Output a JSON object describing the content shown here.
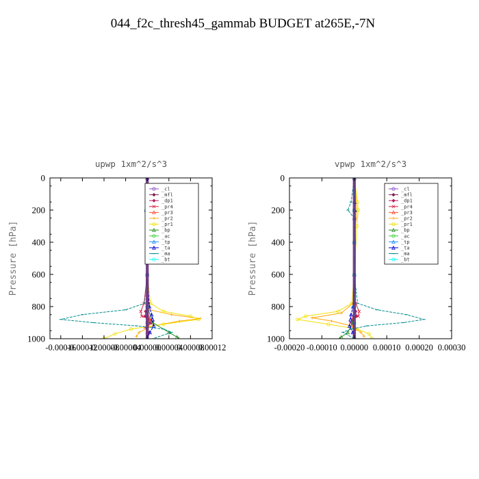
{
  "figure_title": "044_f2c_thresh45_gammab  BUDGET at265E,-7N",
  "chart_data": [
    {
      "type": "line",
      "title": "upwp   1xm^2/s^3",
      "ylabel": "Pressure [hPa]",
      "xlabel": "",
      "ylim": [
        1000,
        0
      ],
      "xlim": [
        -0.00018,
        0.00012
      ],
      "y_ticks": [
        "0",
        "200",
        "400",
        "600",
        "800",
        "1000"
      ],
      "x_tick_labels": [
        "-0.00016",
        "-0.00012",
        "-0.00008",
        "-0.00004",
        "0.00000",
        "0.00004",
        "0.00008",
        "0.00012"
      ],
      "x_tick_values": [
        -0.00016,
        -0.00012,
        -8e-05,
        -4e-05,
        0.0,
        4e-05,
        8e-05,
        0.00012
      ],
      "legend_position": "top-right",
      "series": [
        {
          "name": "_cl",
          "color": "#8a4fc9",
          "x": [
            0,
            0,
            0,
            0,
            0,
            0
          ],
          "y": [
            0,
            200,
            400,
            600,
            800,
            1000
          ]
        },
        {
          "name": "_mfl",
          "color": "#7b1d4f",
          "x": [
            0,
            0,
            0,
            0,
            0,
            0
          ],
          "y": [
            0,
            200,
            400,
            600,
            800,
            1000
          ]
        },
        {
          "name": "_dp1",
          "color": "#b02060",
          "x": [
            0,
            0,
            0,
            0,
            2e-06,
            -3e-06,
            -4e-06,
            4e-06,
            5e-06,
            -2e-06,
            1e-06,
            0
          ],
          "y": [
            0,
            200,
            400,
            600,
            780,
            830,
            860,
            880,
            900,
            930,
            960,
            1000
          ]
        },
        {
          "name": "_pr4",
          "color": "#d62040",
          "x": [
            0,
            0,
            0,
            0,
            -6e-06,
            -1.2e-05,
            -1e-05,
            6e-06,
            1e-05,
            -4e-06,
            2e-06,
            0
          ],
          "y": [
            0,
            200,
            400,
            600,
            780,
            830,
            860,
            880,
            900,
            930,
            960,
            1000
          ]
        },
        {
          "name": "_pr3",
          "color": "#ff5030",
          "x": [
            0,
            0,
            0,
            0,
            0,
            2e-06,
            4e-06,
            2e-06,
            0,
            0
          ],
          "y": [
            0,
            200,
            400,
            600,
            800,
            860,
            880,
            920,
            960,
            1000
          ]
        },
        {
          "name": "_pr2",
          "color": "#ffa500",
          "x": [
            0,
            1e-06,
            0,
            0,
            0,
            4e-06,
            4.5e-05,
            9.8e-05,
            6e-05,
            1e-05,
            -1.5e-05,
            -2e-05
          ],
          "y": [
            0,
            200,
            400,
            600,
            780,
            820,
            850,
            875,
            890,
            920,
            960,
            985
          ]
        },
        {
          "name": "_pr1",
          "color": "#f0e000",
          "x": [
            0,
            3e-06,
            4e-06,
            2e-06,
            0,
            6e-06,
            3e-05,
            8e-05,
            9.5e-05,
            3e-05,
            -3e-05,
            -6e-05,
            -8e-05
          ],
          "y": [
            0,
            150,
            250,
            350,
            600,
            780,
            830,
            860,
            880,
            910,
            940,
            970,
            1000
          ]
        },
        {
          "name": "_bp",
          "color": "#228b22",
          "x": [
            0,
            0,
            0,
            0,
            0,
            1e-05,
            4e-05,
            5.5e-05,
            5.8e-05
          ],
          "y": [
            0,
            200,
            400,
            600,
            800,
            900,
            960,
            990,
            1000
          ]
        },
        {
          "name": "_ac",
          "color": "#32cd32",
          "x": [
            0,
            0,
            0,
            0,
            0,
            0,
            0
          ],
          "y": [
            0,
            200,
            400,
            600,
            800,
            900,
            1000
          ]
        },
        {
          "name": "_tp",
          "color": "#1e90ff",
          "x": [
            0,
            0,
            0,
            0,
            0,
            0,
            0
          ],
          "y": [
            0,
            200,
            400,
            600,
            800,
            900,
            1000
          ]
        },
        {
          "name": "_ta",
          "color": "#0000cd",
          "x": [
            0,
            -1e-06,
            -2e-06,
            0,
            0,
            4e-06,
            8e-06,
            1e-05,
            1.2e-05,
            5e-06,
            0
          ],
          "y": [
            0,
            150,
            200,
            250,
            600,
            800,
            850,
            880,
            920,
            960,
            1000
          ]
        },
        {
          "name": "_ma",
          "color": "#008b8b",
          "x": [
            0,
            -2e-06,
            -3e-06,
            0,
            0,
            -5e-06,
            -4e-05,
            -0.00012,
            -0.00016,
            -0.0001,
            -2e-05,
            3e-05,
            4.5e-05,
            1e-05
          ],
          "y": [
            0,
            150,
            200,
            250,
            600,
            780,
            820,
            850,
            880,
            900,
            920,
            940,
            960,
            1000
          ]
        },
        {
          "name": "_bt",
          "color": "#00ffff",
          "x": [
            0,
            0,
            0,
            0,
            0,
            0
          ],
          "y": [
            0,
            200,
            400,
            600,
            800,
            1000
          ]
        }
      ]
    },
    {
      "type": "line",
      "title": "vpwp   1xm^2/s^3",
      "ylabel": "Pressure [hPa]",
      "xlabel": "",
      "ylim": [
        1000,
        0
      ],
      "xlim": [
        -0.0002,
        0.0003
      ],
      "y_ticks": [
        "0",
        "200",
        "400",
        "600",
        "800",
        "1000"
      ],
      "x_tick_labels": [
        "-0.00020",
        "-0.00010",
        "0.00000",
        "0.00010",
        "0.00020",
        "0.00030"
      ],
      "x_tick_values": [
        -0.0002,
        -0.0001,
        0.0,
        0.0001,
        0.0002,
        0.0003
      ],
      "legend_position": "top-right",
      "series": [
        {
          "name": "_cl",
          "color": "#8a4fc9",
          "x": [
            0,
            0,
            0,
            0,
            0,
            0
          ],
          "y": [
            0,
            200,
            400,
            600,
            800,
            1000
          ]
        },
        {
          "name": "_mfl",
          "color": "#7b1d4f",
          "x": [
            0,
            0,
            0,
            0,
            0,
            0
          ],
          "y": [
            0,
            200,
            400,
            600,
            800,
            1000
          ]
        },
        {
          "name": "_dp1",
          "color": "#b02060",
          "x": [
            0,
            0,
            0,
            0,
            -2e-06,
            4e-06,
            6e-06,
            -4e-06,
            -5e-06,
            2e-06,
            0
          ],
          "y": [
            0,
            200,
            400,
            600,
            780,
            830,
            860,
            880,
            900,
            940,
            1000
          ]
        },
        {
          "name": "_pr4",
          "color": "#d62040",
          "x": [
            0,
            0,
            0,
            0,
            4e-06,
            1.5e-05,
            1.2e-05,
            -6e-06,
            -1e-05,
            3e-06,
            0
          ],
          "y": [
            0,
            200,
            400,
            600,
            780,
            830,
            860,
            880,
            900,
            940,
            1000
          ]
        },
        {
          "name": "_pr3",
          "color": "#ff5030",
          "x": [
            0,
            0,
            0,
            0,
            0,
            -2e-06,
            -4e-06,
            -2e-06,
            0,
            0
          ],
          "y": [
            0,
            200,
            400,
            600,
            800,
            860,
            880,
            920,
            960,
            1000
          ]
        },
        {
          "name": "_pr2",
          "color": "#ffa500",
          "x": [
            0,
            8e-06,
            6e-06,
            0,
            0,
            -4e-06,
            -4e-05,
            -0.00013,
            -7e-05,
            -1e-05,
            2e-05,
            3e-05
          ],
          "y": [
            0,
            200,
            250,
            350,
            600,
            780,
            840,
            870,
            890,
            920,
            960,
            985
          ]
        },
        {
          "name": "_pr1",
          "color": "#f0e000",
          "x": [
            0,
            1e-05,
            1.2e-05,
            8e-06,
            0,
            -8e-06,
            -5e-05,
            -0.00015,
            -0.000175,
            -8e-05,
            1e-05,
            4.5e-05,
            5.5e-05
          ],
          "y": [
            0,
            150,
            200,
            300,
            600,
            780,
            830,
            860,
            880,
            910,
            940,
            970,
            1000
          ]
        },
        {
          "name": "_bp",
          "color": "#228b22",
          "x": [
            0,
            0,
            0,
            0,
            0,
            -5e-06,
            -2e-05,
            -4e-05,
            -4.5e-05
          ],
          "y": [
            0,
            200,
            400,
            600,
            800,
            900,
            960,
            990,
            1000
          ]
        },
        {
          "name": "_ac",
          "color": "#32cd32",
          "x": [
            0,
            0,
            0,
            0,
            0,
            0,
            0
          ],
          "y": [
            0,
            200,
            400,
            600,
            800,
            900,
            1000
          ]
        },
        {
          "name": "_tp",
          "color": "#1e90ff",
          "x": [
            0,
            0,
            0,
            0,
            0,
            0,
            0
          ],
          "y": [
            0,
            200,
            400,
            600,
            800,
            900,
            1000
          ]
        },
        {
          "name": "_ta",
          "color": "#0000cd",
          "x": [
            0,
            1e-06,
            2e-06,
            0,
            0,
            -4e-06,
            -1e-05,
            -1.2e-05,
            -1.5e-05,
            -5e-06,
            0
          ],
          "y": [
            0,
            150,
            200,
            250,
            600,
            800,
            850,
            880,
            920,
            960,
            1000
          ]
        },
        {
          "name": "_ma",
          "color": "#008b8b",
          "x": [
            0,
            -1e-05,
            -2e-05,
            0,
            0,
            1e-05,
            7e-05,
            0.00016,
            0.000215,
            0.00015,
            4e-05,
            -1e-05,
            -3.5e-05,
            0
          ],
          "y": [
            0,
            150,
            200,
            250,
            600,
            780,
            820,
            850,
            880,
            900,
            920,
            940,
            960,
            1000
          ]
        },
        {
          "name": "_bt",
          "color": "#00ffff",
          "x": [
            0,
            0,
            0,
            0,
            0,
            0
          ],
          "y": [
            0,
            200,
            400,
            600,
            800,
            1000
          ]
        }
      ]
    }
  ]
}
